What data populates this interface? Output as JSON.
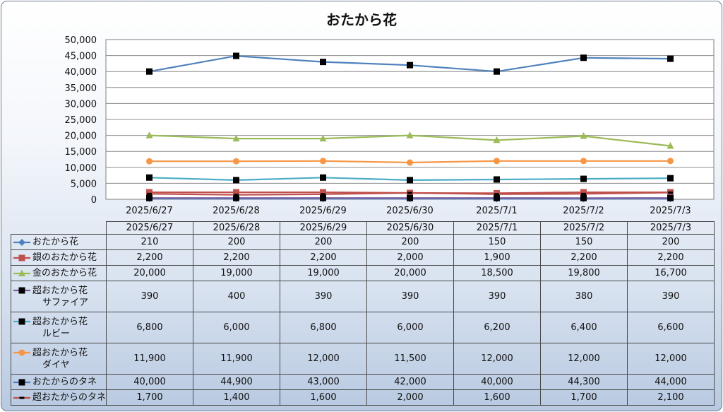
{
  "chart_data": {
    "type": "line",
    "title": "おたから花",
    "categories": [
      "2025/6/27",
      "2025/6/28",
      "2025/6/29",
      "2025/6/30",
      "2025/7/1",
      "2025/7/2",
      "2025/7/3"
    ],
    "ylim": [
      0,
      50000
    ],
    "yticks": [
      "0",
      "5,000",
      "10,000",
      "15,000",
      "20,000",
      "25,000",
      "30,000",
      "35,000",
      "40,000",
      "45,000",
      "50,000"
    ],
    "grid": true,
    "legend": "data-table",
    "series": [
      {
        "name": "おたから花",
        "values": [
          210,
          200,
          200,
          200,
          150,
          150,
          200
        ],
        "display": [
          "210",
          "200",
          "200",
          "200",
          "150",
          "150",
          "200"
        ],
        "color": "#4f81bd",
        "marker": "diamond"
      },
      {
        "name": "銀のおたから花",
        "values": [
          2200,
          2200,
          2200,
          2000,
          1900,
          2200,
          2200
        ],
        "display": [
          "2,200",
          "2,200",
          "2,200",
          "2,000",
          "1,900",
          "2,200",
          "2,200"
        ],
        "color": "#c0504d",
        "marker": "square"
      },
      {
        "name": "金のおたから花",
        "values": [
          20000,
          19000,
          19000,
          20000,
          18500,
          19800,
          16700
        ],
        "display": [
          "20,000",
          "19,000",
          "19,000",
          "20,000",
          "18,500",
          "19,800",
          "16,700"
        ],
        "color": "#9bbb59",
        "marker": "triangle"
      },
      {
        "name": "超おたから花",
        "name2": "サファイア",
        "values": [
          390,
          400,
          390,
          390,
          390,
          380,
          390
        ],
        "display": [
          "390",
          "400",
          "390",
          "390",
          "390",
          "380",
          "390"
        ],
        "color": "#7d60a0",
        "marker": "square-black"
      },
      {
        "name": "超おたから花",
        "name2": "ルビー",
        "values": [
          6800,
          6000,
          6800,
          6000,
          6200,
          6400,
          6600
        ],
        "display": [
          "6,800",
          "6,000",
          "6,800",
          "6,000",
          "6,200",
          "6,400",
          "6,600"
        ],
        "color": "#4bacc6",
        "marker": "square-black"
      },
      {
        "name": "超おたから花",
        "name2": "ダイヤ",
        "values": [
          11900,
          11900,
          12000,
          11500,
          12000,
          12000,
          12000
        ],
        "display": [
          "11,900",
          "11,900",
          "12,000",
          "11,500",
          "12,000",
          "12,000",
          "12,000"
        ],
        "color": "#f79646",
        "marker": "circle"
      },
      {
        "name": "おたからのタネ",
        "values": [
          40000,
          44900,
          43000,
          42000,
          40000,
          44300,
          44000
        ],
        "display": [
          "40,000",
          "44,900",
          "43,000",
          "42,000",
          "40,000",
          "44,300",
          "44,000"
        ],
        "color": "#4f81bd",
        "marker": "square-black"
      },
      {
        "name": "超おたからのタネ",
        "values": [
          1700,
          1400,
          1600,
          2000,
          1600,
          1700,
          2100
        ],
        "display": [
          "1,700",
          "1,400",
          "1,600",
          "2,000",
          "1,600",
          "1,700",
          "2,100"
        ],
        "color": "#c0504d",
        "marker": "dash"
      }
    ]
  }
}
